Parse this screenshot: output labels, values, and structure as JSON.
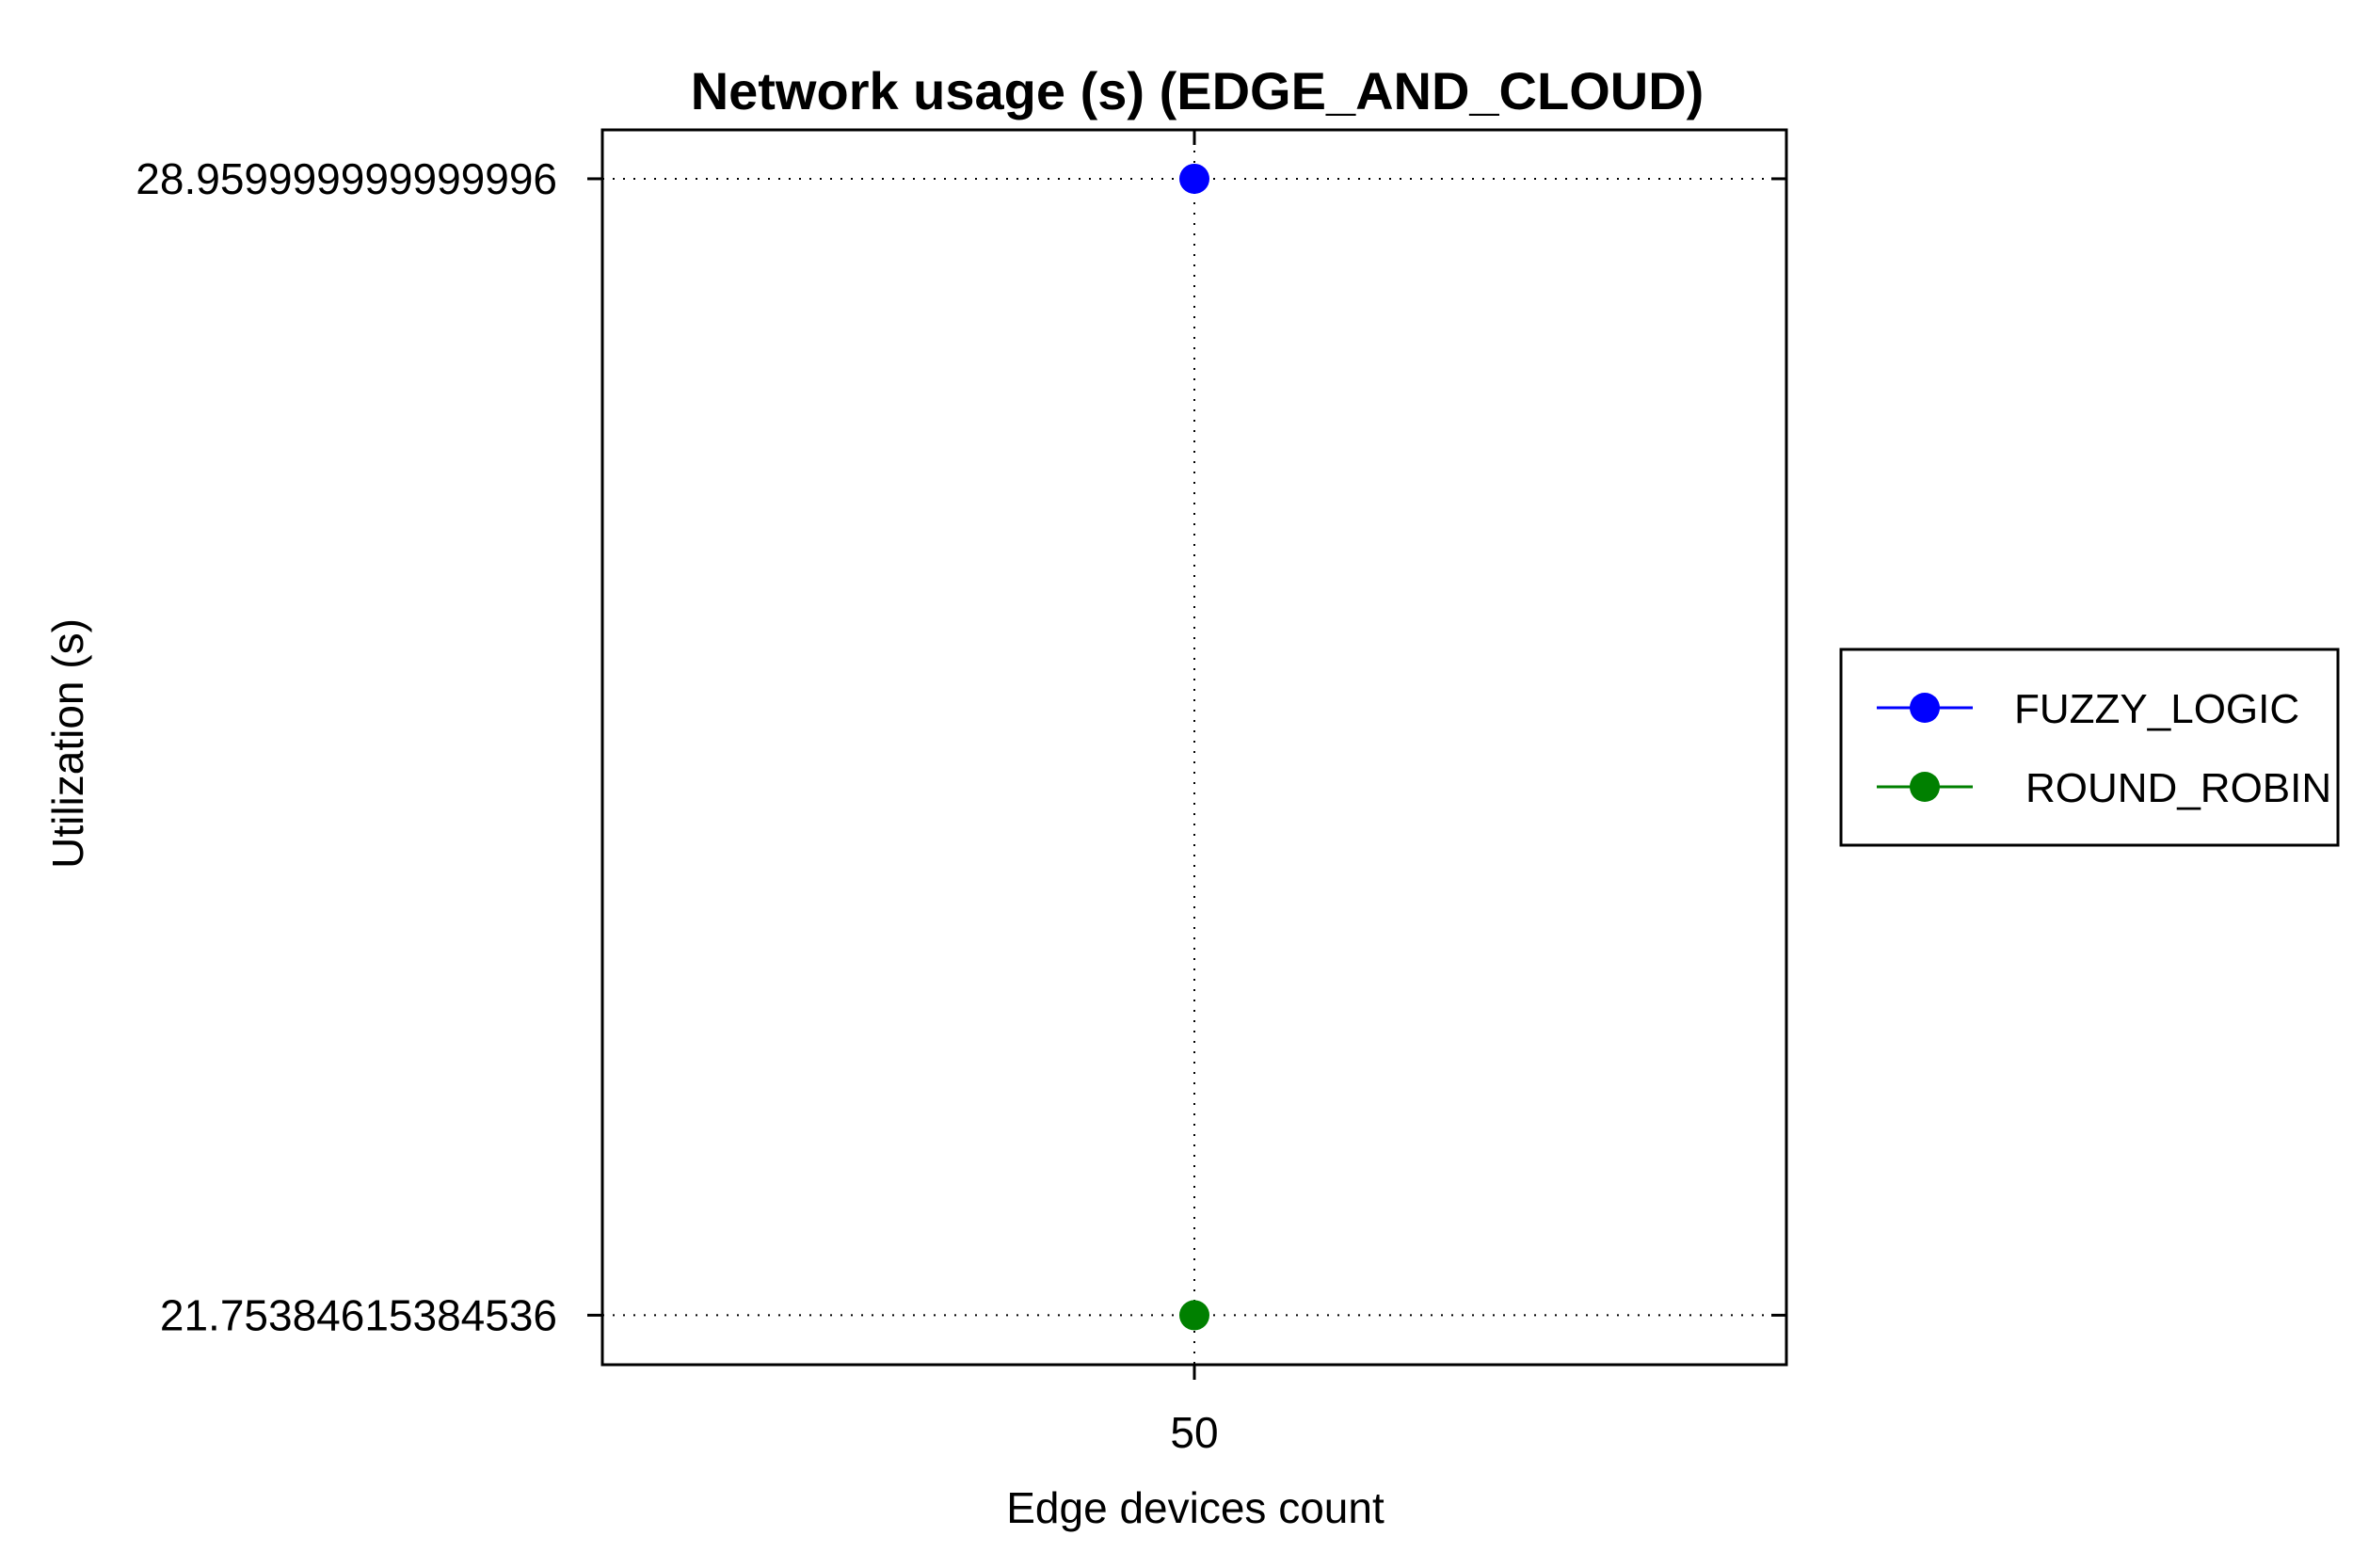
{
  "chart_data": {
    "type": "line",
    "title": "Network usage (s) (EDGE_AND_CLOUD)",
    "xlabel": "Edge devices count",
    "ylabel": "Utilization (s)",
    "categories": [
      "50"
    ],
    "y_ticks": [
      "28.959999999999996",
      "21.75384615384536"
    ],
    "ylim": [
      21.44,
      29.27
    ],
    "grid": true,
    "legend_position": "right",
    "series": [
      {
        "name": "FUZZY_LOGIC",
        "values": [
          28.959999999999997
        ],
        "color": "#0000ff"
      },
      {
        "name": "ROUND_ROBIN",
        "values": [
          21.75384615384536
        ],
        "color": "#008000"
      }
    ]
  }
}
